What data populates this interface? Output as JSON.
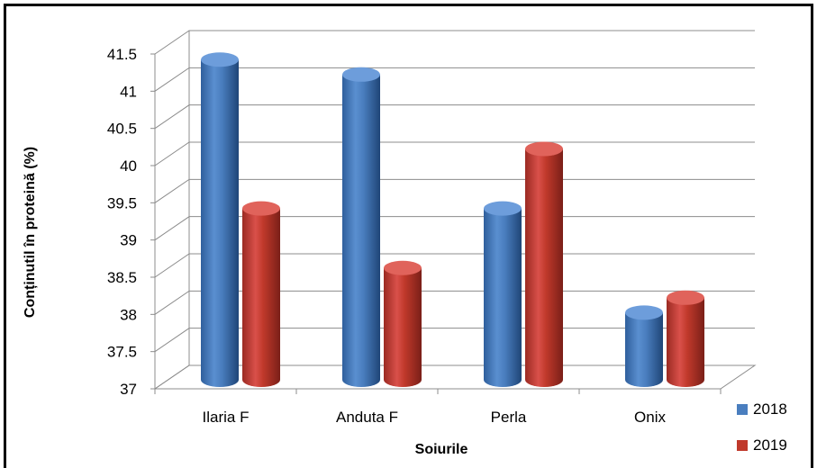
{
  "chart_data": {
    "type": "bar",
    "title": "",
    "xlabel": "Soiurile",
    "ylabel": "Conținutil în proteină (%)",
    "categories": [
      "Ilaria F",
      "Anduta F",
      "Perla",
      "Onix"
    ],
    "series": [
      {
        "name": "2018",
        "values": [
          41.4,
          41.2,
          39.4,
          38.0
        ],
        "color": "#4a7ebf"
      },
      {
        "name": "2019",
        "values": [
          39.4,
          38.6,
          40.2,
          38.2
        ],
        "color": "#c0392b"
      }
    ],
    "ylim": [
      37,
      41.5
    ],
    "yticks": [
      "37",
      "37.5",
      "38",
      "38.5",
      "39",
      "39.5",
      "40",
      "40.5",
      "41",
      "41.5"
    ],
    "grid": true,
    "legend_position": "right-bottom",
    "style": "3d-cylinder"
  }
}
